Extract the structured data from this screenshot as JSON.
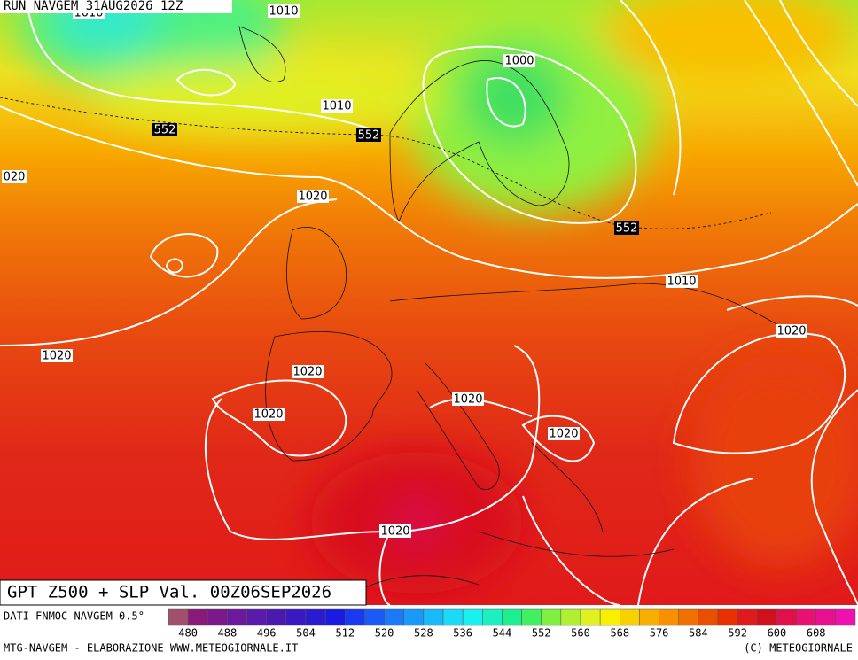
{
  "header": {
    "run": "RUN NAVGEM 31AUG2026 12Z"
  },
  "title": "GPT Z500 + SLP Val. 00Z06SEP2026",
  "legend": {
    "source": "DATI FNMOC NAVGEM 0.5°",
    "ticks": [
      480,
      488,
      496,
      504,
      512,
      520,
      528,
      536,
      544,
      552,
      560,
      568,
      576,
      584,
      592,
      600,
      608
    ],
    "colors": [
      "#a0506a",
      "#8a1a7a",
      "#7a1a8a",
      "#6a1a9a",
      "#5a1aaa",
      "#4a1ab0",
      "#3a1ac0",
      "#2a1ad0",
      "#1a1ae0",
      "#1a3af0",
      "#1a5af5",
      "#1a7af8",
      "#1a9af8",
      "#1abaf8",
      "#1adaf8",
      "#1af0f0",
      "#1af0c0",
      "#1af090",
      "#40f060",
      "#80f040",
      "#b0f030",
      "#e0f020",
      "#f8f000",
      "#f8d000",
      "#f8b000",
      "#f89000",
      "#f07000",
      "#e85000",
      "#e83000",
      "#e01a1a",
      "#d0101a",
      "#e0104a",
      "#e81070",
      "#e81090",
      "#f010b0"
    ]
  },
  "contour_labels": [
    "1010",
    "1010",
    "1000",
    "1010",
    "552",
    "552",
    "020",
    "1020",
    "552",
    "1010",
    "1020",
    "1020",
    "1020",
    "1020",
    "1020",
    "1020",
    "1020"
  ],
  "footer": {
    "left": "MTG-NAVGEM - ELABORAZIONE WWW.METEOGIORNALE.IT",
    "right": "(C) METEOGIORNALE"
  }
}
